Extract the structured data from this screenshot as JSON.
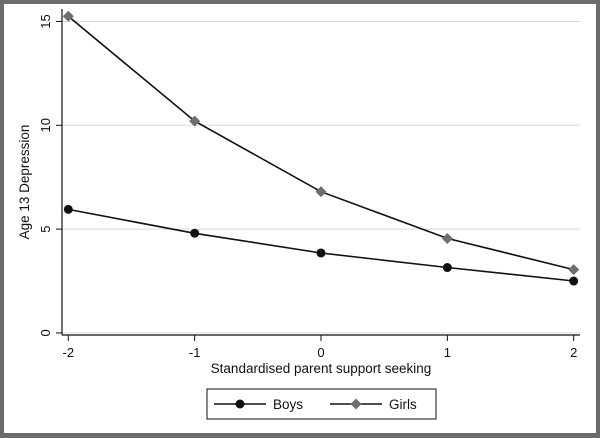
{
  "chart_data": {
    "type": "line",
    "xlabel": "Standardised parent support seeking",
    "ylabel": "Age 13 Depression",
    "x": [
      -2,
      -1,
      0,
      1,
      2
    ],
    "x_ticks": [
      -2,
      -1,
      0,
      1,
      2
    ],
    "y_ticks": [
      0,
      5,
      10,
      15
    ],
    "xlim": [
      -2.05,
      2.05
    ],
    "ylim": [
      -0.1,
      15.6
    ],
    "grid": "horizontal",
    "legend_position": "bottom",
    "series": [
      {
        "name": "Boys",
        "marker": "circle",
        "values": [
          5.95,
          4.8,
          3.85,
          3.15,
          2.5
        ]
      },
      {
        "name": "Girls",
        "marker": "diamond",
        "values": [
          15.25,
          10.2,
          6.8,
          4.55,
          3.05
        ]
      }
    ],
    "colors": {
      "line": "#111111",
      "boys_marker": "#111111",
      "girls_marker": "#6e6e6e",
      "grid": "#d9d9d9",
      "frame": "#6b6b6b"
    }
  }
}
